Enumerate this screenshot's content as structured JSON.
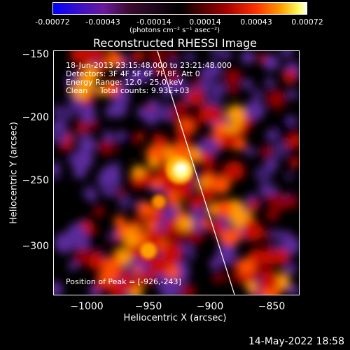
{
  "colorbar": {
    "ticks": [
      "-0.00072",
      "-0.00043",
      "-0.00014",
      "0.00014",
      "0.00043",
      "0.00072"
    ],
    "units": "(photons cm⁻² s⁻¹ asec⁻²)",
    "colors": [
      "#0000ff",
      "#6a1a9a",
      "#000000",
      "#a00000",
      "#ff3000",
      "#ffa000",
      "#ffffff"
    ]
  },
  "title": "Reconstructed RHESSI Image",
  "info_lines": [
    "18-Jun-2013 23:15:48.000 to 23:21:48.000",
    "Detectors: 3F 4F 5F 6F 7F 8F, Att 0",
    "Energy Range: 12.0 - 25.0 keV",
    "Clean     Total counts: 9.93E+03"
  ],
  "peak": "Position of Peak = [-926,-243]",
  "axes": {
    "xlabel": "Heliocentric X (arcsec)",
    "ylabel": "Heliocentric Y (arcsec)",
    "xticks": [
      "−1000",
      "−950",
      "−900",
      "−850"
    ],
    "yticks": [
      "−150",
      "−200",
      "−250",
      "−300"
    ]
  },
  "footer_date": "14-May-2022 18:58"
}
